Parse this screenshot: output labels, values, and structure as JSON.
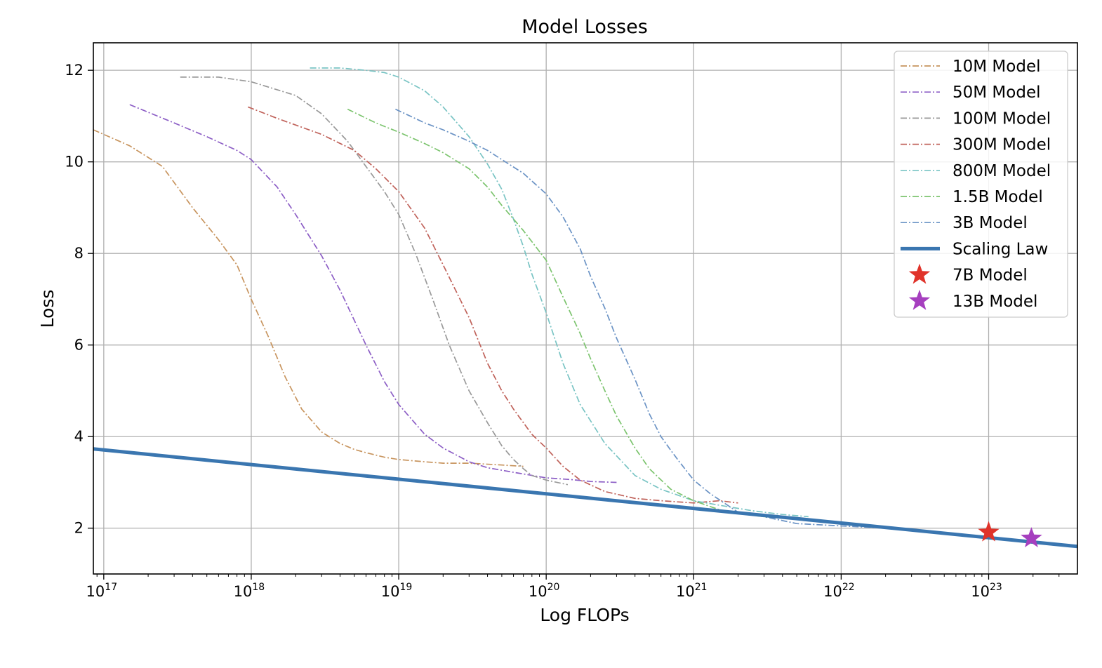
{
  "chart_data": {
    "type": "line",
    "title": "Model Losses",
    "xlabel": "Log FLOPs",
    "ylabel": "Loss",
    "x_scale": "log",
    "xlim": [
      8.5e+16,
      4e+23
    ],
    "ylim": [
      1.0,
      12.6
    ],
    "grid": true,
    "legend_position": "top-right",
    "x_ticks": [
      {
        "base": "10",
        "exp": "17"
      },
      {
        "base": "10",
        "exp": "18"
      },
      {
        "base": "10",
        "exp": "19"
      },
      {
        "base": "10",
        "exp": "20"
      },
      {
        "base": "10",
        "exp": "21"
      },
      {
        "base": "10",
        "exp": "22"
      },
      {
        "base": "10",
        "exp": "23"
      }
    ],
    "y_ticks": [
      "2",
      "4",
      "6",
      "8",
      "10",
      "12"
    ],
    "series": [
      {
        "name": "10M Model",
        "color": "#c8955f",
        "style": "dashdot",
        "x": [
          8.5e+16,
          1.5e+17,
          2.5e+17,
          4e+17,
          6e+17,
          8e+17,
          1e+18,
          1.3e+18,
          1.7e+18,
          2.2e+18,
          3e+18,
          4e+18,
          5e+18,
          6e+18,
          8e+18,
          1e+19,
          1.5e+19,
          2e+19,
          3e+19,
          5e+19,
          7e+19
        ],
        "y": [
          10.7,
          10.35,
          9.9,
          9.0,
          8.3,
          7.75,
          7.0,
          6.2,
          5.3,
          4.6,
          4.1,
          3.85,
          3.72,
          3.65,
          3.55,
          3.5,
          3.45,
          3.42,
          3.42,
          3.38,
          3.35
        ]
      },
      {
        "name": "50M Model",
        "color": "#8d5fc6",
        "style": "dashdot",
        "x": [
          1.5e+17,
          3e+17,
          5e+17,
          8e+17,
          1e+18,
          1.5e+18,
          2e+18,
          3e+18,
          4e+18,
          6e+18,
          8e+18,
          1e+19,
          1.5e+19,
          2e+19,
          3e+19,
          4e+19,
          6e+19,
          1e+20,
          1.5e+20,
          2e+20,
          3e+20
        ],
        "y": [
          11.25,
          10.85,
          10.55,
          10.25,
          10.05,
          9.45,
          8.85,
          7.95,
          7.2,
          6.0,
          5.2,
          4.7,
          4.05,
          3.75,
          3.45,
          3.32,
          3.22,
          3.1,
          3.06,
          3.02,
          3.0
        ]
      },
      {
        "name": "100M Model",
        "color": "#999999",
        "style": "dashdot",
        "x": [
          3.3e+17,
          6e+17,
          1e+18,
          2e+18,
          3e+18,
          4.5e+18,
          6e+18,
          8e+18,
          1e+19,
          1.3e+19,
          1.7e+19,
          2.2e+19,
          3e+19,
          4e+19,
          5e+19,
          6e+19,
          7e+19,
          8e+19,
          1e+20,
          1.4e+20
        ],
        "y": [
          11.85,
          11.85,
          11.75,
          11.45,
          11.05,
          10.45,
          9.9,
          9.35,
          8.85,
          8.0,
          7.0,
          6.0,
          5.0,
          4.3,
          3.8,
          3.5,
          3.3,
          3.15,
          3.05,
          2.95
        ]
      },
      {
        "name": "300M Model",
        "color": "#c0625a",
        "style": "dashdot",
        "x": [
          9.5e+17,
          1.5e+18,
          3e+18,
          5e+18,
          7e+18,
          1e+19,
          1.5e+19,
          2e+19,
          3e+19,
          4e+19,
          5e+19,
          6e+19,
          8e+19,
          1e+20,
          1.3e+20,
          1.7e+20,
          2.5e+20,
          4e+20,
          6e+20,
          1e+21,
          1.5e+21,
          2e+21
        ],
        "y": [
          11.2,
          10.95,
          10.6,
          10.25,
          9.85,
          9.35,
          8.55,
          7.75,
          6.6,
          5.6,
          5.0,
          4.6,
          4.05,
          3.75,
          3.35,
          3.05,
          2.8,
          2.65,
          2.6,
          2.55,
          2.6,
          2.55
        ]
      },
      {
        "name": "800M Model",
        "color": "#79c4c4",
        "style": "dashdot",
        "x": [
          2.5e+18,
          4e+18,
          6e+18,
          8e+18,
          1e+19,
          1.5e+19,
          2e+19,
          3e+19,
          4e+19,
          5e+19,
          6e+19,
          7e+19,
          8e+19,
          1e+20,
          1.3e+20,
          1.7e+20,
          2.5e+20,
          4e+20,
          6e+20,
          1e+21,
          1.5e+21,
          2.5e+21,
          4e+21,
          6e+21
        ],
        "y": [
          12.05,
          12.05,
          12.0,
          11.95,
          11.85,
          11.55,
          11.2,
          10.55,
          9.95,
          9.4,
          8.75,
          8.15,
          7.55,
          6.7,
          5.6,
          4.7,
          3.85,
          3.15,
          2.85,
          2.6,
          2.5,
          2.38,
          2.3,
          2.25
        ]
      },
      {
        "name": "1.5B Model",
        "color": "#7cc46e",
        "style": "dashdot",
        "x": [
          4.5e+18,
          7e+18,
          1e+19,
          1.5e+19,
          2e+19,
          3e+19,
          4e+19,
          5e+19,
          7e+19,
          1e+20,
          1.3e+20,
          1.7e+20,
          2e+20,
          2.5e+20,
          3e+20,
          4e+20,
          5e+20,
          7e+20,
          1e+21,
          1.5e+21,
          2e+21,
          3e+21,
          5e+21,
          8e+21
        ],
        "y": [
          11.15,
          10.85,
          10.65,
          10.4,
          10.2,
          9.85,
          9.45,
          9.05,
          8.5,
          7.85,
          7.05,
          6.25,
          5.7,
          5.0,
          4.45,
          3.75,
          3.3,
          2.85,
          2.6,
          2.4,
          2.32,
          2.25,
          2.2,
          2.15
        ]
      },
      {
        "name": "3B Model",
        "color": "#6b93c5",
        "style": "dashdot",
        "x": [
          9.5e+18,
          1.5e+19,
          2e+19,
          3e+19,
          4e+19,
          5e+19,
          7e+19,
          1e+20,
          1.3e+20,
          1.7e+20,
          2e+20,
          2.5e+20,
          3e+20,
          4e+20,
          5e+20,
          6e+20,
          7e+20,
          8e+20,
          1e+21,
          1.3e+21,
          1.7e+21,
          2e+21,
          3e+21,
          5e+21,
          1e+22,
          2e+22
        ],
        "y": [
          11.15,
          10.85,
          10.7,
          10.45,
          10.25,
          10.05,
          9.75,
          9.3,
          8.8,
          8.1,
          7.5,
          6.8,
          6.15,
          5.25,
          4.5,
          4.0,
          3.7,
          3.45,
          3.05,
          2.75,
          2.5,
          2.35,
          2.25,
          2.1,
          2.05,
          2.0
        ]
      },
      {
        "name": "Scaling Law",
        "color": "#3a76b0",
        "style": "solid",
        "x": [
          8.5e+16,
          4e+23
        ],
        "y": [
          3.73,
          1.6
        ]
      }
    ],
    "markers": [
      {
        "name": "7B Model",
        "color": "#e0332a",
        "x": 1e+23,
        "y": 1.91
      },
      {
        "name": "13B Model",
        "color": "#a63fbf",
        "x": 1.95e+23,
        "y": 1.78
      }
    ]
  }
}
